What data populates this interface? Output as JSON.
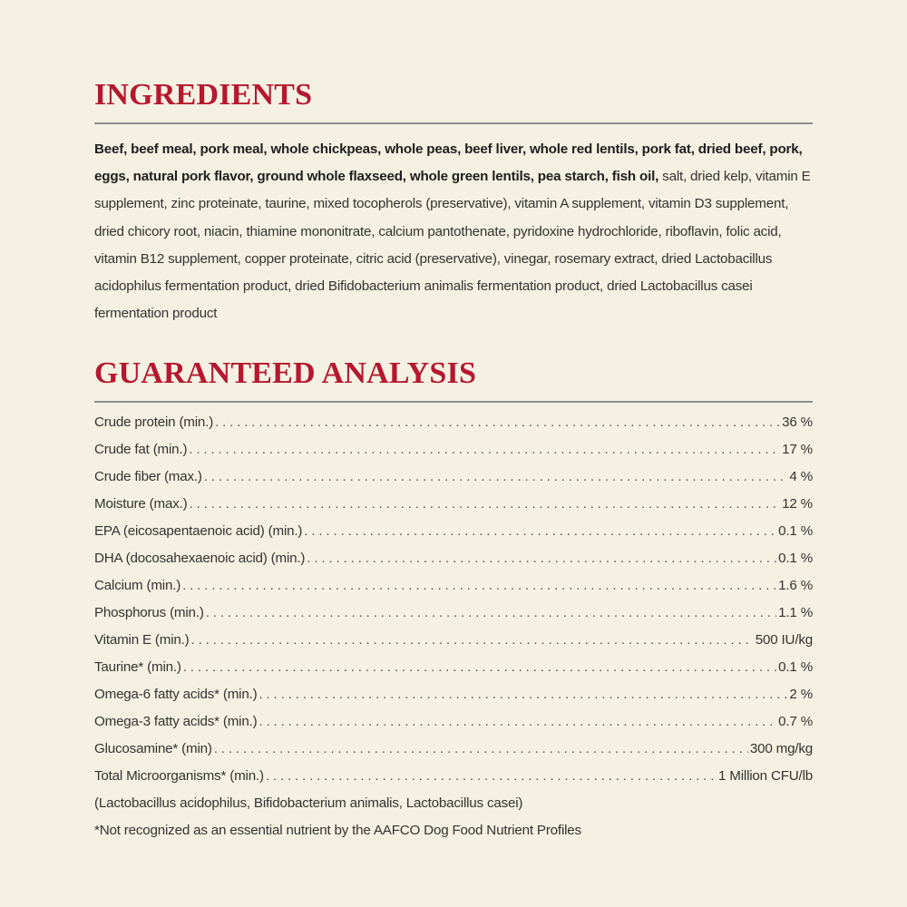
{
  "ingredients": {
    "title": "INGREDIENTS",
    "bold_text": "Beef, beef meal, pork meal, whole chickpeas, whole peas, beef liver, whole red lentils, pork fat, dried beef, pork, eggs, natural pork flavor, ground whole flaxseed, whole green lentils, pea starch, fish oil,",
    "regular_text": " salt, dried kelp, vitamin E supplement, zinc proteinate, taurine, mixed tocopherols (preservative), vitamin A supplement, vitamin D3 supplement, dried chicory root, niacin, thiamine mononitrate, calcium pantothenate, pyridoxine hydrochloride, riboflavin, folic acid, vitamin B12 supplement, copper proteinate, citric acid (preservative), vinegar, rosemary extract, dried Lactobacillus acidophilus fermentation product, dried Bifidobacterium animalis fermentation product, dried Lactobacillus casei fermentation product"
  },
  "analysis": {
    "title": "GUARANTEED ANALYSIS",
    "rows": [
      {
        "label": "Crude protein (min.)",
        "value": "36 %"
      },
      {
        "label": "Crude fat (min.)",
        "value": "17 %"
      },
      {
        "label": "Crude fiber (max.)",
        "value": "4 %"
      },
      {
        "label": "Moisture (max.)",
        "value": "12 %"
      },
      {
        "label": "EPA (eicosapentaenoic acid) (min.)",
        "value": "0.1 %"
      },
      {
        "label": "DHA (docosahexaenoic acid) (min.)",
        "value": "0.1 %"
      },
      {
        "label": "Calcium (min.)",
        "value": "1.6 %"
      },
      {
        "label": "Phosphorus (min.)",
        "value": "1.1 %"
      },
      {
        "label": "Vitamin E (min.)",
        "value": "500 IU/kg"
      },
      {
        "label": "Taurine* (min.)",
        "value": "0.1 %"
      },
      {
        "label": "Omega-6 fatty acids* (min.)",
        "value": "2 %"
      },
      {
        "label": "Omega-3 fatty acids* (min.)",
        "value": "0.7 %"
      },
      {
        "label": "Glucosamine* (min)",
        "value": "300 mg/kg"
      },
      {
        "label": "Total Microorganisms* (min.)",
        "value": "1 Million CFU/lb"
      }
    ],
    "microorganisms_note": "(Lactobacillus acidophilus, Bifidobacterium animalis, Lactobacillus casei)",
    "footnote": "*Not recognized as an essential nutrient by the AAFCO Dog Food Nutrient Profiles"
  },
  "colors": {
    "background": "#f4f1e2",
    "heading": "#b5182f",
    "rule": "#8d8d8d",
    "text": "#333333"
  }
}
